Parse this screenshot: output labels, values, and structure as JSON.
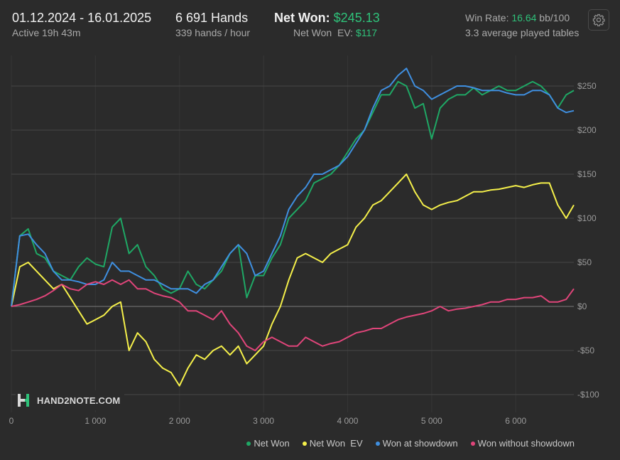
{
  "header": {
    "date_range": "01.12.2024 - 16.01.2025",
    "active_time": "Active 19h 43m",
    "hands": "6 691 Hands",
    "hands_per_hour": "339 hands / hour",
    "net_won_label": "Net Won: ",
    "net_won_value": "$245.13",
    "net_won_ev_label": "Net Won  EV: ",
    "net_won_ev_value": "$117",
    "win_rate_label": "Win Rate: ",
    "win_rate_value": "16.64",
    "win_rate_unit": " bb/100",
    "avg_tables": "3.3 average played tables",
    "settings_icon": "gear-icon"
  },
  "watermark": {
    "text": "HAND2NOTE.COM",
    "icon": "hand2note-logo"
  },
  "colors": {
    "net_won": "#1fa865",
    "net_won_ev": "#f5f04a",
    "showdown": "#3f8fe0",
    "no_showdown": "#e0457a",
    "accent_green": "#2fc27a"
  },
  "chart_data": {
    "type": "line",
    "xlabel": "",
    "ylabel": "",
    "xlim": [
      0,
      6691
    ],
    "ylim": [
      -110,
      270
    ],
    "x_ticks": [
      0,
      1000,
      2000,
      3000,
      4000,
      5000,
      6000
    ],
    "x_tick_labels": [
      "0",
      "1 000",
      "2 000",
      "3 000",
      "4 000",
      "5 000",
      "6 000"
    ],
    "y_ticks": [
      -100,
      -50,
      0,
      50,
      100,
      150,
      200,
      250
    ],
    "y_tick_labels": [
      "-$100",
      "-$50",
      "$0",
      "$50",
      "$100",
      "$150",
      "$200",
      "$250"
    ],
    "grid": true,
    "legend_position": "bottom-right",
    "series": [
      {
        "name": "Net Won",
        "color": "#1fa865",
        "x": [
          0,
          100,
          200,
          300,
          400,
          500,
          600,
          700,
          800,
          900,
          1000,
          1100,
          1200,
          1300,
          1400,
          1500,
          1600,
          1700,
          1800,
          1900,
          2000,
          2100,
          2200,
          2300,
          2400,
          2500,
          2600,
          2700,
          2800,
          2900,
          3000,
          3100,
          3200,
          3300,
          3400,
          3500,
          3600,
          3700,
          3800,
          3900,
          4000,
          4100,
          4200,
          4300,
          4400,
          4500,
          4600,
          4700,
          4800,
          4900,
          5000,
          5100,
          5200,
          5300,
          5400,
          5500,
          5600,
          5700,
          5800,
          5900,
          6000,
          6100,
          6200,
          6300,
          6400,
          6500,
          6600,
          6691
        ],
        "y": [
          0,
          80,
          88,
          60,
          55,
          40,
          35,
          30,
          45,
          55,
          48,
          45,
          90,
          100,
          60,
          70,
          45,
          35,
          20,
          15,
          20,
          40,
          25,
          20,
          30,
          40,
          60,
          70,
          10,
          35,
          35,
          55,
          70,
          100,
          110,
          120,
          140,
          145,
          150,
          160,
          175,
          190,
          200,
          220,
          240,
          240,
          255,
          250,
          225,
          230,
          190,
          225,
          235,
          240,
          240,
          248,
          240,
          245,
          250,
          245,
          245,
          250,
          255,
          250,
          240,
          225,
          240,
          245
        ]
      },
      {
        "name": "Net Won  EV",
        "color": "#f5f04a",
        "x": [
          0,
          100,
          200,
          300,
          400,
          500,
          600,
          700,
          800,
          900,
          1000,
          1100,
          1200,
          1300,
          1400,
          1500,
          1600,
          1700,
          1800,
          1900,
          2000,
          2100,
          2200,
          2300,
          2400,
          2500,
          2600,
          2700,
          2800,
          2900,
          3000,
          3100,
          3200,
          3300,
          3400,
          3500,
          3600,
          3700,
          3800,
          3900,
          4000,
          4100,
          4200,
          4300,
          4400,
          4500,
          4600,
          4700,
          4800,
          4900,
          5000,
          5100,
          5200,
          5300,
          5400,
          5500,
          5600,
          5700,
          5800,
          5900,
          6000,
          6100,
          6200,
          6300,
          6400,
          6500,
          6600,
          6691
        ],
        "y": [
          0,
          45,
          50,
          40,
          30,
          20,
          25,
          10,
          -5,
          -20,
          -15,
          -10,
          0,
          5,
          -50,
          -30,
          -40,
          -60,
          -70,
          -75,
          -90,
          -70,
          -55,
          -60,
          -50,
          -45,
          -55,
          -45,
          -65,
          -55,
          -45,
          -20,
          0,
          30,
          55,
          60,
          55,
          50,
          60,
          65,
          70,
          90,
          100,
          115,
          120,
          130,
          140,
          150,
          130,
          115,
          110,
          115,
          118,
          120,
          125,
          130,
          130,
          132,
          133,
          135,
          137,
          135,
          138,
          140,
          140,
          115,
          100,
          115
        ]
      },
      {
        "name": "Won at showdown",
        "color": "#3f8fe0",
        "x": [
          0,
          100,
          200,
          300,
          400,
          500,
          600,
          700,
          800,
          900,
          1000,
          1100,
          1200,
          1300,
          1400,
          1500,
          1600,
          1700,
          1800,
          1900,
          2000,
          2100,
          2200,
          2300,
          2400,
          2500,
          2600,
          2700,
          2800,
          2900,
          3000,
          3100,
          3200,
          3300,
          3400,
          3500,
          3600,
          3700,
          3800,
          3900,
          4000,
          4100,
          4200,
          4300,
          4400,
          4500,
          4600,
          4700,
          4800,
          4900,
          5000,
          5100,
          5200,
          5300,
          5400,
          5500,
          5600,
          5700,
          5800,
          5900,
          6000,
          6100,
          6200,
          6300,
          6400,
          6500,
          6600,
          6691
        ],
        "y": [
          0,
          80,
          82,
          70,
          60,
          40,
          30,
          30,
          28,
          25,
          25,
          30,
          50,
          40,
          40,
          35,
          30,
          30,
          25,
          20,
          20,
          20,
          15,
          25,
          30,
          45,
          60,
          70,
          60,
          35,
          40,
          60,
          80,
          110,
          125,
          135,
          150,
          150,
          155,
          160,
          170,
          185,
          200,
          225,
          245,
          250,
          262,
          270,
          250,
          245,
          235,
          240,
          245,
          250,
          250,
          248,
          245,
          245,
          245,
          242,
          240,
          240,
          245,
          245,
          240,
          225,
          220,
          222
        ]
      },
      {
        "name": "Won without showdown",
        "color": "#e0457a",
        "x": [
          0,
          100,
          200,
          300,
          400,
          500,
          600,
          700,
          800,
          900,
          1000,
          1100,
          1200,
          1300,
          1400,
          1500,
          1600,
          1700,
          1800,
          1900,
          2000,
          2100,
          2200,
          2300,
          2400,
          2500,
          2600,
          2700,
          2800,
          2900,
          3000,
          3100,
          3200,
          3300,
          3400,
          3500,
          3600,
          3700,
          3800,
          3900,
          4000,
          4100,
          4200,
          4300,
          4400,
          4500,
          4600,
          4700,
          4800,
          4900,
          5000,
          5100,
          5200,
          5300,
          5400,
          5500,
          5600,
          5700,
          5800,
          5900,
          6000,
          6100,
          6200,
          6300,
          6400,
          6500,
          6600,
          6691
        ],
        "y": [
          0,
          2,
          5,
          8,
          12,
          18,
          25,
          20,
          18,
          25,
          28,
          25,
          30,
          25,
          30,
          20,
          20,
          15,
          12,
          10,
          5,
          -5,
          -5,
          -10,
          -15,
          -5,
          -20,
          -30,
          -45,
          -50,
          -40,
          -35,
          -40,
          -45,
          -45,
          -35,
          -40,
          -45,
          -42,
          -40,
          -35,
          -30,
          -28,
          -25,
          -25,
          -20,
          -15,
          -12,
          -10,
          -8,
          -5,
          0,
          -5,
          -3,
          -2,
          0,
          2,
          5,
          5,
          8,
          8,
          10,
          10,
          12,
          5,
          5,
          8,
          20
        ]
      }
    ]
  }
}
